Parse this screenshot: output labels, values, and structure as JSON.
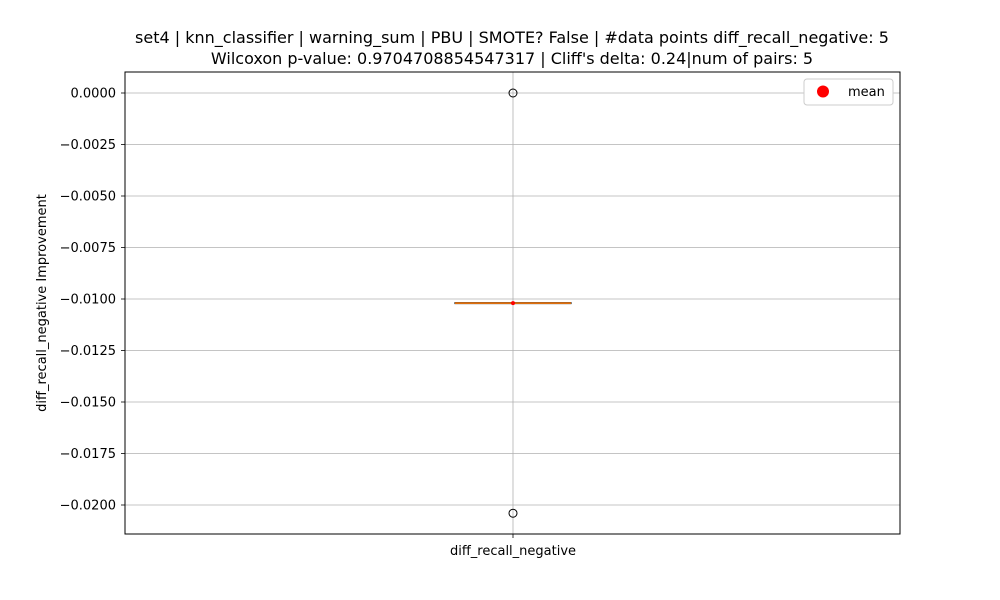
{
  "chart_data": {
    "type": "box",
    "title_line1": "set4 | knn_classifier | warning_sum | PBU | SMOTE? False | #data points diff_recall_negative: 5",
    "title_line2": "Wilcoxon p-value: 0.9704708854547317 | Cliff's delta: 0.24|num of pairs: 5",
    "ylabel": "diff_recall_negative Improvement",
    "xlabel": "",
    "categories": [
      "diff_recall_negative"
    ],
    "ylim": [
      -0.0215,
      0.001
    ],
    "yticks": [
      0.0,
      -0.0025,
      -0.005,
      -0.0075,
      -0.01,
      -0.0125,
      -0.015,
      -0.0175,
      -0.02
    ],
    "ytick_labels": [
      "0.0000",
      "−0.0025",
      "−0.0050",
      "−0.0075",
      "−0.0100",
      "−0.0125",
      "−0.0150",
      "−0.0175",
      "−0.0200"
    ],
    "grid": true,
    "legend": {
      "position": "top-right",
      "entries": [
        {
          "label": "mean",
          "color": "#ff0000",
          "marker": "circle"
        }
      ]
    },
    "box": {
      "q1": -0.0102,
      "median": -0.0102,
      "q3": -0.0102,
      "whisker_low": -0.0102,
      "whisker_high": -0.0102,
      "mean": -0.0102,
      "outliers": [
        0.0,
        -0.0204
      ]
    },
    "colors": {
      "median": "#ff7f0e",
      "mean": "#ff0000",
      "box": "#000000",
      "grid": "#b0b0b0"
    }
  }
}
